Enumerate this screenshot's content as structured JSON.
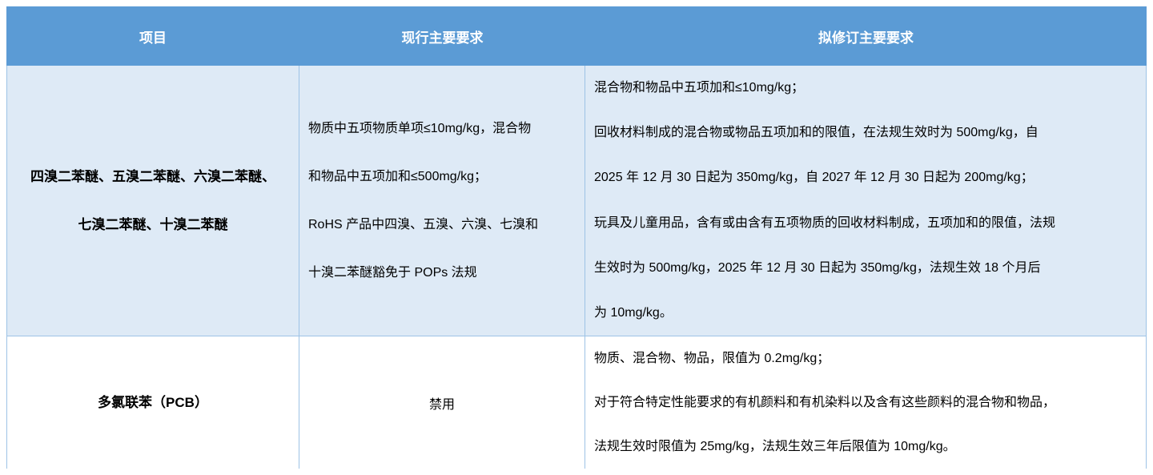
{
  "table": {
    "columns": [
      {
        "label": "项目"
      },
      {
        "label": "现行主要要求"
      },
      {
        "label": "拟修订主要要求"
      }
    ],
    "rows": [
      {
        "item_lines": [
          "四溴二苯醚、五溴二苯醚、六溴二苯醚、",
          "七溴二苯醚、十溴二苯醚"
        ],
        "current_lines": [
          "物质中五项物质单项≤10mg/kg，混合物",
          "和物品中五项加和≤500mg/kg；",
          "RoHS 产品中四溴、五溴、六溴、七溴和",
          "十溴二苯醚豁免于 POPs 法规"
        ],
        "proposed_lines": [
          "混合物和物品中五项加和≤10mg/kg；",
          "回收材料制成的混合物或物品五项加和的限值，在法规生效时为 500mg/kg，自",
          "2025 年 12 月 30 日起为 350mg/kg，自 2027 年 12 月 30 日起为 200mg/kg；",
          "玩具及儿童用品，含有或由含有五项物质的回收材料制成，五项加和的限值，法规",
          "生效时为 500mg/kg，2025 年 12 月 30 日起为 350mg/kg，法规生效 18 个月后",
          "为 10mg/kg。"
        ]
      },
      {
        "item_lines": [
          "多氯联苯（PCB）"
        ],
        "current_lines": [
          "禁用"
        ],
        "proposed_lines": [
          "物质、混合物、物品，限值为 0.2mg/kg；",
          "对于符合特定性能要求的有机颜料和有机染料以及含有这些颜料的混合物和物品，",
          "法规生效时限值为 25mg/kg，法规生效三年后限值为 10mg/kg。"
        ]
      }
    ]
  },
  "colors": {
    "header_bg": "#5B9BD5",
    "header_text": "#FFFFFF",
    "row_alt_bg": "#DEEAF6",
    "row_bg": "#FFFFFF",
    "border": "#9DC3E6",
    "text": "#000000"
  }
}
